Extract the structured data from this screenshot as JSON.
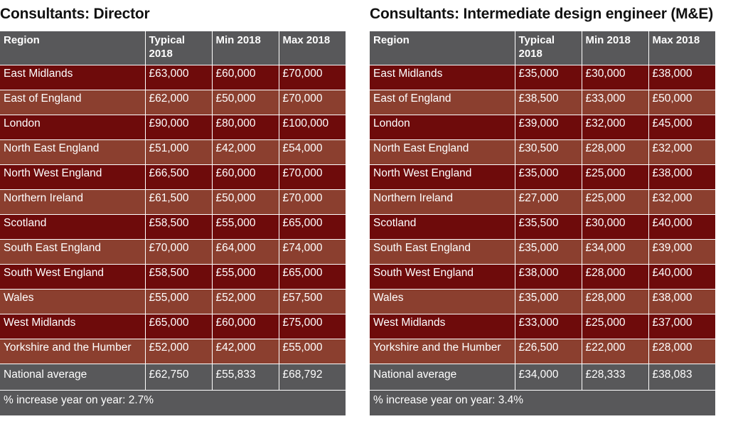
{
  "chart_data": [
    {
      "type": "table",
      "title": "Consultants: Director",
      "headers": [
        "Region",
        "Typical 2018",
        "Min 2018",
        "Max 2018"
      ],
      "rows": [
        [
          "East Midlands",
          "£63,000",
          "£60,000",
          "£70,000"
        ],
        [
          "East of England",
          "£62,000",
          "£50,000",
          "£70,000"
        ],
        [
          "London",
          "£90,000",
          "£80,000",
          "£100,000"
        ],
        [
          "North East England",
          "£51,000",
          "£42,000",
          "£54,000"
        ],
        [
          "North West England",
          "£66,500",
          "£60,000",
          "£70,000"
        ],
        [
          "Northern Ireland",
          "£61,500",
          "£50,000",
          "£70,000"
        ],
        [
          "Scotland",
          "£58,500",
          "£55,000",
          "£65,000"
        ],
        [
          "South East England",
          "£70,000",
          "£64,000",
          "£74,000"
        ],
        [
          "South West England",
          "£58,500",
          "£55,000",
          "£65,000"
        ],
        [
          "Wales",
          "£55,000",
          "£52,000",
          "£57,500"
        ],
        [
          "West Midlands",
          "£65,000",
          "£60,000",
          "£75,000"
        ],
        [
          "Yorkshire and the Humber",
          "£52,000",
          "£42,000",
          "£55,000"
        ]
      ],
      "average": [
        "National average",
        "£62,750",
        "£55,833",
        "£68,792"
      ],
      "footer": "% increase year on year:  2.7%"
    },
    {
      "type": "table",
      "title": "Consultants: Intermediate design engineer (M&E)",
      "headers": [
        "Region",
        "Typical 2018",
        "Min 2018",
        "Max 2018"
      ],
      "rows": [
        [
          "East Midlands",
          "£35,000",
          "£30,000",
          "£38,000"
        ],
        [
          "East of England",
          "£38,500",
          "£33,000",
          "£50,000"
        ],
        [
          "London",
          "£39,000",
          "£32,000",
          "£45,000"
        ],
        [
          "North East England",
          "£30,500",
          "£28,000",
          "£32,000"
        ],
        [
          "North West England",
          "£35,000",
          "£25,000",
          "£38,000"
        ],
        [
          "Northern Ireland",
          "£27,000",
          "£25,000",
          "£32,000"
        ],
        [
          "Scotland",
          "£35,500",
          "£30,000",
          "£40,000"
        ],
        [
          "South East England",
          "£35,000",
          "£34,000",
          "£39,000"
        ],
        [
          "South West England",
          "£38,000",
          "£28,000",
          "£40,000"
        ],
        [
          "Wales",
          "£35,000",
          "£28,000",
          "£38,000"
        ],
        [
          "West Midlands",
          "£33,000",
          "£25,000",
          "£37,000"
        ],
        [
          "Yorkshire and the Humber",
          "£26,500",
          "£22,000",
          "£28,000"
        ]
      ],
      "average": [
        "National average",
        "£34,000",
        "£28,333",
        "£38,083"
      ],
      "footer": "% increase year on year:  3.4%"
    }
  ],
  "colors": {
    "header": "#58585a",
    "row_dark": "#6e0b0b",
    "row_light": "#8b3f2f",
    "text": "#ffffff"
  }
}
